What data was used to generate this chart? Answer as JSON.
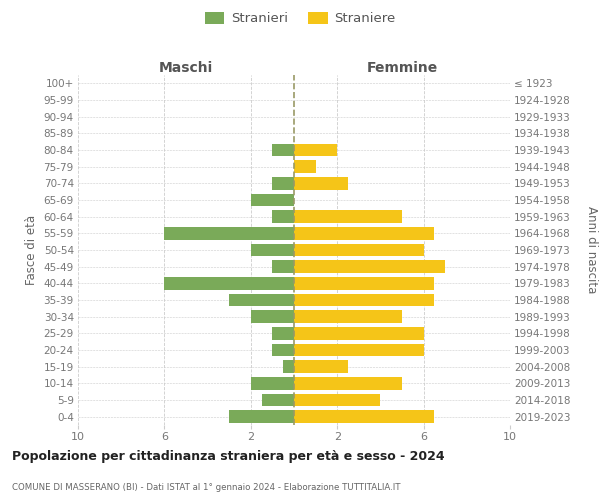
{
  "age_groups": [
    "100+",
    "95-99",
    "90-94",
    "85-89",
    "80-84",
    "75-79",
    "70-74",
    "65-69",
    "60-64",
    "55-59",
    "50-54",
    "45-49",
    "40-44",
    "35-39",
    "30-34",
    "25-29",
    "20-24",
    "15-19",
    "10-14",
    "5-9",
    "0-4"
  ],
  "birth_years": [
    "≤ 1923",
    "1924-1928",
    "1929-1933",
    "1934-1938",
    "1939-1943",
    "1944-1948",
    "1949-1953",
    "1954-1958",
    "1959-1963",
    "1964-1968",
    "1969-1973",
    "1974-1978",
    "1979-1983",
    "1984-1988",
    "1989-1993",
    "1994-1998",
    "1999-2003",
    "2004-2008",
    "2009-2013",
    "2014-2018",
    "2019-2023"
  ],
  "maschi": [
    0,
    0,
    0,
    0,
    1,
    0,
    1,
    2,
    1,
    6,
    2,
    1,
    6,
    3,
    2,
    1,
    1,
    0.5,
    2,
    1.5,
    3
  ],
  "femmine": [
    0,
    0,
    0,
    0,
    2,
    1,
    2.5,
    0,
    5,
    6.5,
    6,
    7,
    6.5,
    6.5,
    5,
    6,
    6,
    2.5,
    5,
    4,
    6.5
  ],
  "male_color": "#7aaa59",
  "female_color": "#f5c518",
  "title": "Popolazione per cittadinanza straniera per età e sesso - 2024",
  "subtitle": "COMUNE DI MASSERANO (BI) - Dati ISTAT al 1° gennaio 2024 - Elaborazione TUTTITALIA.IT",
  "legend_male": "Stranieri",
  "legend_female": "Straniere",
  "header_left": "Maschi",
  "header_right": "Femmine",
  "ylabel_left": "Fasce di età",
  "ylabel_right": "Anni di nascita",
  "xlim": 10,
  "bg": "#ffffff",
  "grid_color": "#cccccc",
  "center_color": "#999966"
}
